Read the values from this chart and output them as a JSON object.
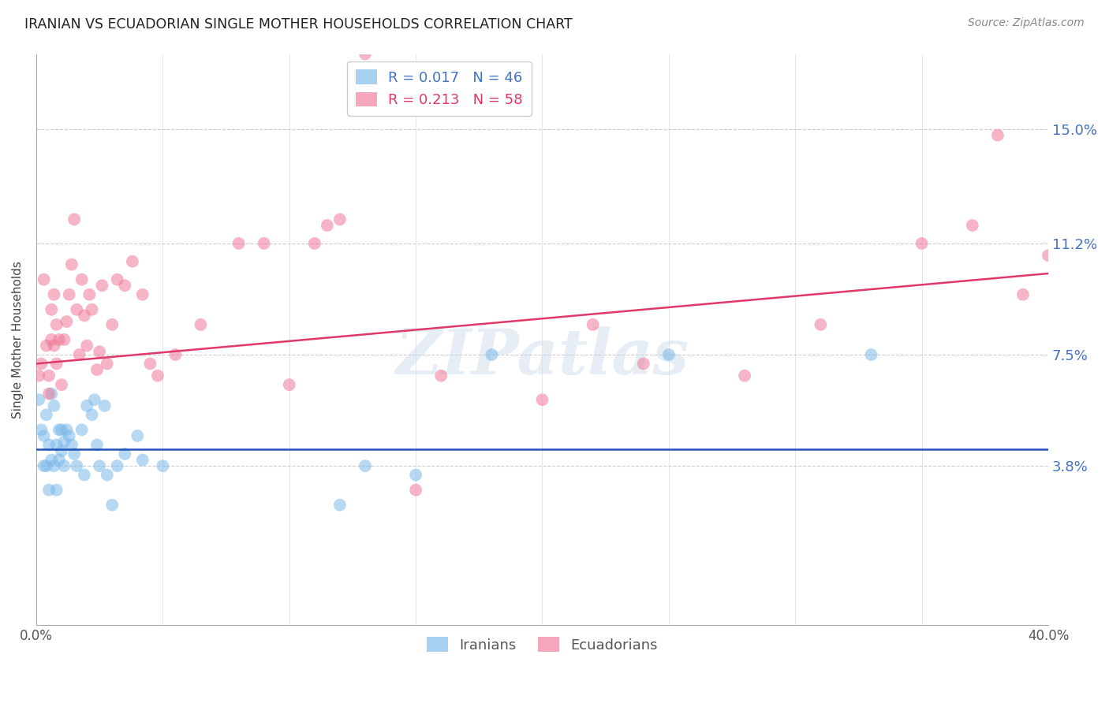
{
  "title": "IRANIAN VS ECUADORIAN SINGLE MOTHER HOUSEHOLDS CORRELATION CHART",
  "source": "Source: ZipAtlas.com",
  "ylabel": "Single Mother Households",
  "ytick_labels": [
    "15.0%",
    "11.2%",
    "7.5%",
    "3.8%"
  ],
  "ytick_values": [
    0.15,
    0.112,
    0.075,
    0.038
  ],
  "xmin": 0.0,
  "xmax": 0.4,
  "ymin": -0.015,
  "ymax": 0.175,
  "iranian_color": "#7ab8e8",
  "ecuadorian_color": "#f07898",
  "iranian_line_color": "#2255bb",
  "ecuadorian_line_color": "#e03868",
  "watermark": "ZIPatlas",
  "iranians_x": [
    0.001,
    0.002,
    0.003,
    0.003,
    0.004,
    0.004,
    0.005,
    0.005,
    0.006,
    0.006,
    0.007,
    0.007,
    0.008,
    0.008,
    0.009,
    0.009,
    0.01,
    0.01,
    0.011,
    0.011,
    0.012,
    0.013,
    0.014,
    0.015,
    0.016,
    0.018,
    0.019,
    0.02,
    0.022,
    0.023,
    0.024,
    0.025,
    0.027,
    0.028,
    0.03,
    0.032,
    0.035,
    0.04,
    0.042,
    0.05,
    0.12,
    0.13,
    0.15,
    0.18,
    0.25,
    0.33
  ],
  "iranians_y": [
    0.06,
    0.05,
    0.038,
    0.048,
    0.055,
    0.038,
    0.045,
    0.03,
    0.062,
    0.04,
    0.058,
    0.038,
    0.045,
    0.03,
    0.05,
    0.04,
    0.043,
    0.05,
    0.046,
    0.038,
    0.05,
    0.048,
    0.045,
    0.042,
    0.038,
    0.05,
    0.035,
    0.058,
    0.055,
    0.06,
    0.045,
    0.038,
    0.058,
    0.035,
    0.025,
    0.038,
    0.042,
    0.048,
    0.04,
    0.038,
    0.025,
    0.038,
    0.035,
    0.075,
    0.075,
    0.075
  ],
  "ecuadorians_x": [
    0.001,
    0.002,
    0.003,
    0.004,
    0.005,
    0.005,
    0.006,
    0.006,
    0.007,
    0.007,
    0.008,
    0.008,
    0.009,
    0.01,
    0.011,
    0.012,
    0.013,
    0.014,
    0.015,
    0.016,
    0.017,
    0.018,
    0.019,
    0.02,
    0.021,
    0.022,
    0.024,
    0.025,
    0.026,
    0.028,
    0.03,
    0.032,
    0.035,
    0.038,
    0.042,
    0.045,
    0.048,
    0.055,
    0.065,
    0.08,
    0.09,
    0.1,
    0.11,
    0.115,
    0.12,
    0.13,
    0.15,
    0.16,
    0.2,
    0.22,
    0.24,
    0.28,
    0.31,
    0.35,
    0.37,
    0.38,
    0.39,
    0.4
  ],
  "ecuadorians_y": [
    0.068,
    0.072,
    0.1,
    0.078,
    0.062,
    0.068,
    0.09,
    0.08,
    0.078,
    0.095,
    0.085,
    0.072,
    0.08,
    0.065,
    0.08,
    0.086,
    0.095,
    0.105,
    0.12,
    0.09,
    0.075,
    0.1,
    0.088,
    0.078,
    0.095,
    0.09,
    0.07,
    0.076,
    0.098,
    0.072,
    0.085,
    0.1,
    0.098,
    0.106,
    0.095,
    0.072,
    0.068,
    0.075,
    0.085,
    0.112,
    0.112,
    0.065,
    0.112,
    0.118,
    0.12,
    0.175,
    0.03,
    0.068,
    0.06,
    0.085,
    0.072,
    0.068,
    0.085,
    0.112,
    0.118,
    0.148,
    0.095,
    0.108
  ],
  "iranian_R": 0.017,
  "iranian_N": 46,
  "ecuadorian_R": 0.213,
  "ecuadorian_N": 58,
  "iranian_line_y0": 0.0435,
  "iranian_line_y1": 0.0435,
  "ecuadorian_line_y0": 0.072,
  "ecuadorian_line_y1": 0.102
}
